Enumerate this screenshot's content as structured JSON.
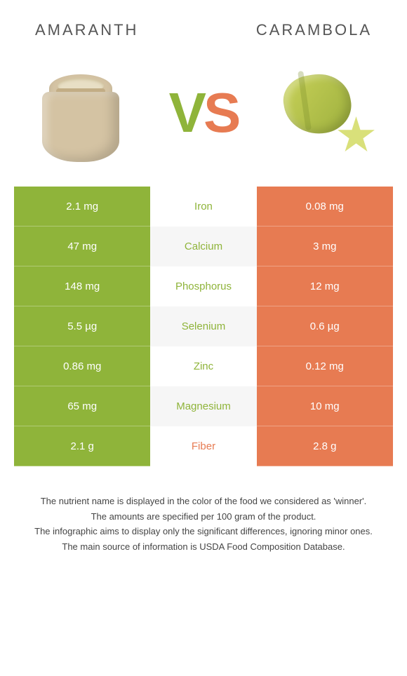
{
  "colors": {
    "left": "#8fb43a",
    "right": "#e77b52",
    "mid_bg_even": "#f6f6f6",
    "mid_bg_odd": "#ffffff"
  },
  "header": {
    "left": "Amaranth",
    "right": "Carambola"
  },
  "vs": {
    "v": "V",
    "s": "S"
  },
  "rows": [
    {
      "left": "2.1 mg",
      "label": "Iron",
      "right": "0.08 mg",
      "winner": "left"
    },
    {
      "left": "47 mg",
      "label": "Calcium",
      "right": "3 mg",
      "winner": "left"
    },
    {
      "left": "148 mg",
      "label": "Phosphorus",
      "right": "12 mg",
      "winner": "left"
    },
    {
      "left": "5.5 µg",
      "label": "Selenium",
      "right": "0.6 µg",
      "winner": "left"
    },
    {
      "left": "0.86 mg",
      "label": "Zinc",
      "right": "0.12 mg",
      "winner": "left"
    },
    {
      "left": "65 mg",
      "label": "Magnesium",
      "right": "10 mg",
      "winner": "left"
    },
    {
      "left": "2.1 g",
      "label": "Fiber",
      "right": "2.8 g",
      "winner": "right"
    }
  ],
  "footer": [
    "The nutrient name is displayed in the color of the food we considered as 'winner'.",
    "The amounts are specified per 100 gram of the product.",
    "The infographic aims to display only the significant differences, ignoring minor ones.",
    "The main source of information is USDA Food Composition Database."
  ]
}
